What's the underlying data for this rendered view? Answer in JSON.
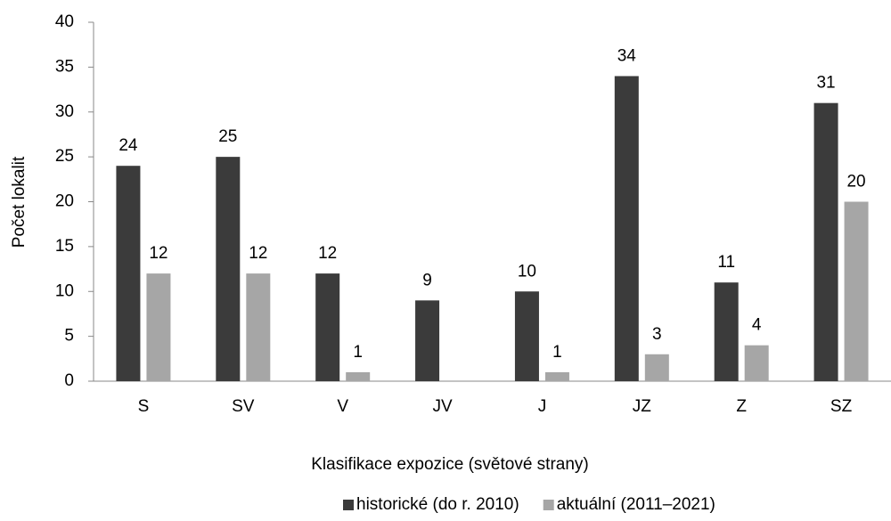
{
  "chart_data": {
    "type": "bar",
    "x_label": "Klasifikace expozice (světové strany)",
    "y_label": "Počet lokalit",
    "categories": [
      "S",
      "SV",
      "V",
      "JV",
      "J",
      "JZ",
      "Z",
      "SZ"
    ],
    "series": [
      {
        "name": "historické (do r. 2010)",
        "color": "#3b3b3b",
        "values": [
          24,
          25,
          12,
          9,
          10,
          34,
          11,
          31
        ]
      },
      {
        "name": "aktuální (2011–2021)",
        "color": "#a6a6a6",
        "values": [
          12,
          12,
          1,
          null,
          1,
          3,
          4,
          20
        ]
      }
    ],
    "ylim": [
      0,
      40
    ],
    "yticks": [
      0,
      5,
      10,
      15,
      20,
      25,
      30,
      35,
      40
    ],
    "grid": false,
    "legend": "bottom"
  }
}
